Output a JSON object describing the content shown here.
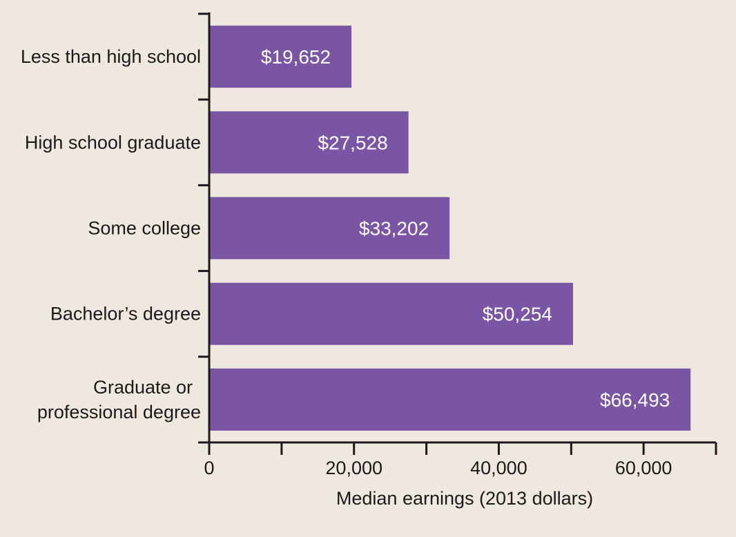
{
  "chart_data": {
    "type": "bar",
    "orientation": "horizontal",
    "categories": [
      [
        "Less than high school"
      ],
      [
        "High school graduate"
      ],
      [
        "Some college"
      ],
      [
        "Bachelor’s degree"
      ],
      [
        "Graduate or",
        "professional degree"
      ]
    ],
    "values": [
      19652,
      27528,
      33202,
      50254,
      66493
    ],
    "data_labels": [
      "$19,652",
      "$27,528",
      "$33,202",
      "$50,254",
      "$66,493"
    ],
    "xlabel": "Median earnings (2013 dollars)",
    "xlim": [
      0,
      70000
    ],
    "x_ticks": [
      0,
      20000,
      40000,
      60000
    ],
    "x_tick_labels": [
      "0",
      "20,000",
      "40,000",
      "60,000"
    ],
    "x_minor_ticks": [
      10000,
      30000,
      50000,
      70000
    ],
    "grid": false,
    "colors": {
      "bar": "#7a55a3",
      "background": "#efe8df",
      "axis": "#1a1a1a",
      "data_label": "#ffffff"
    }
  }
}
